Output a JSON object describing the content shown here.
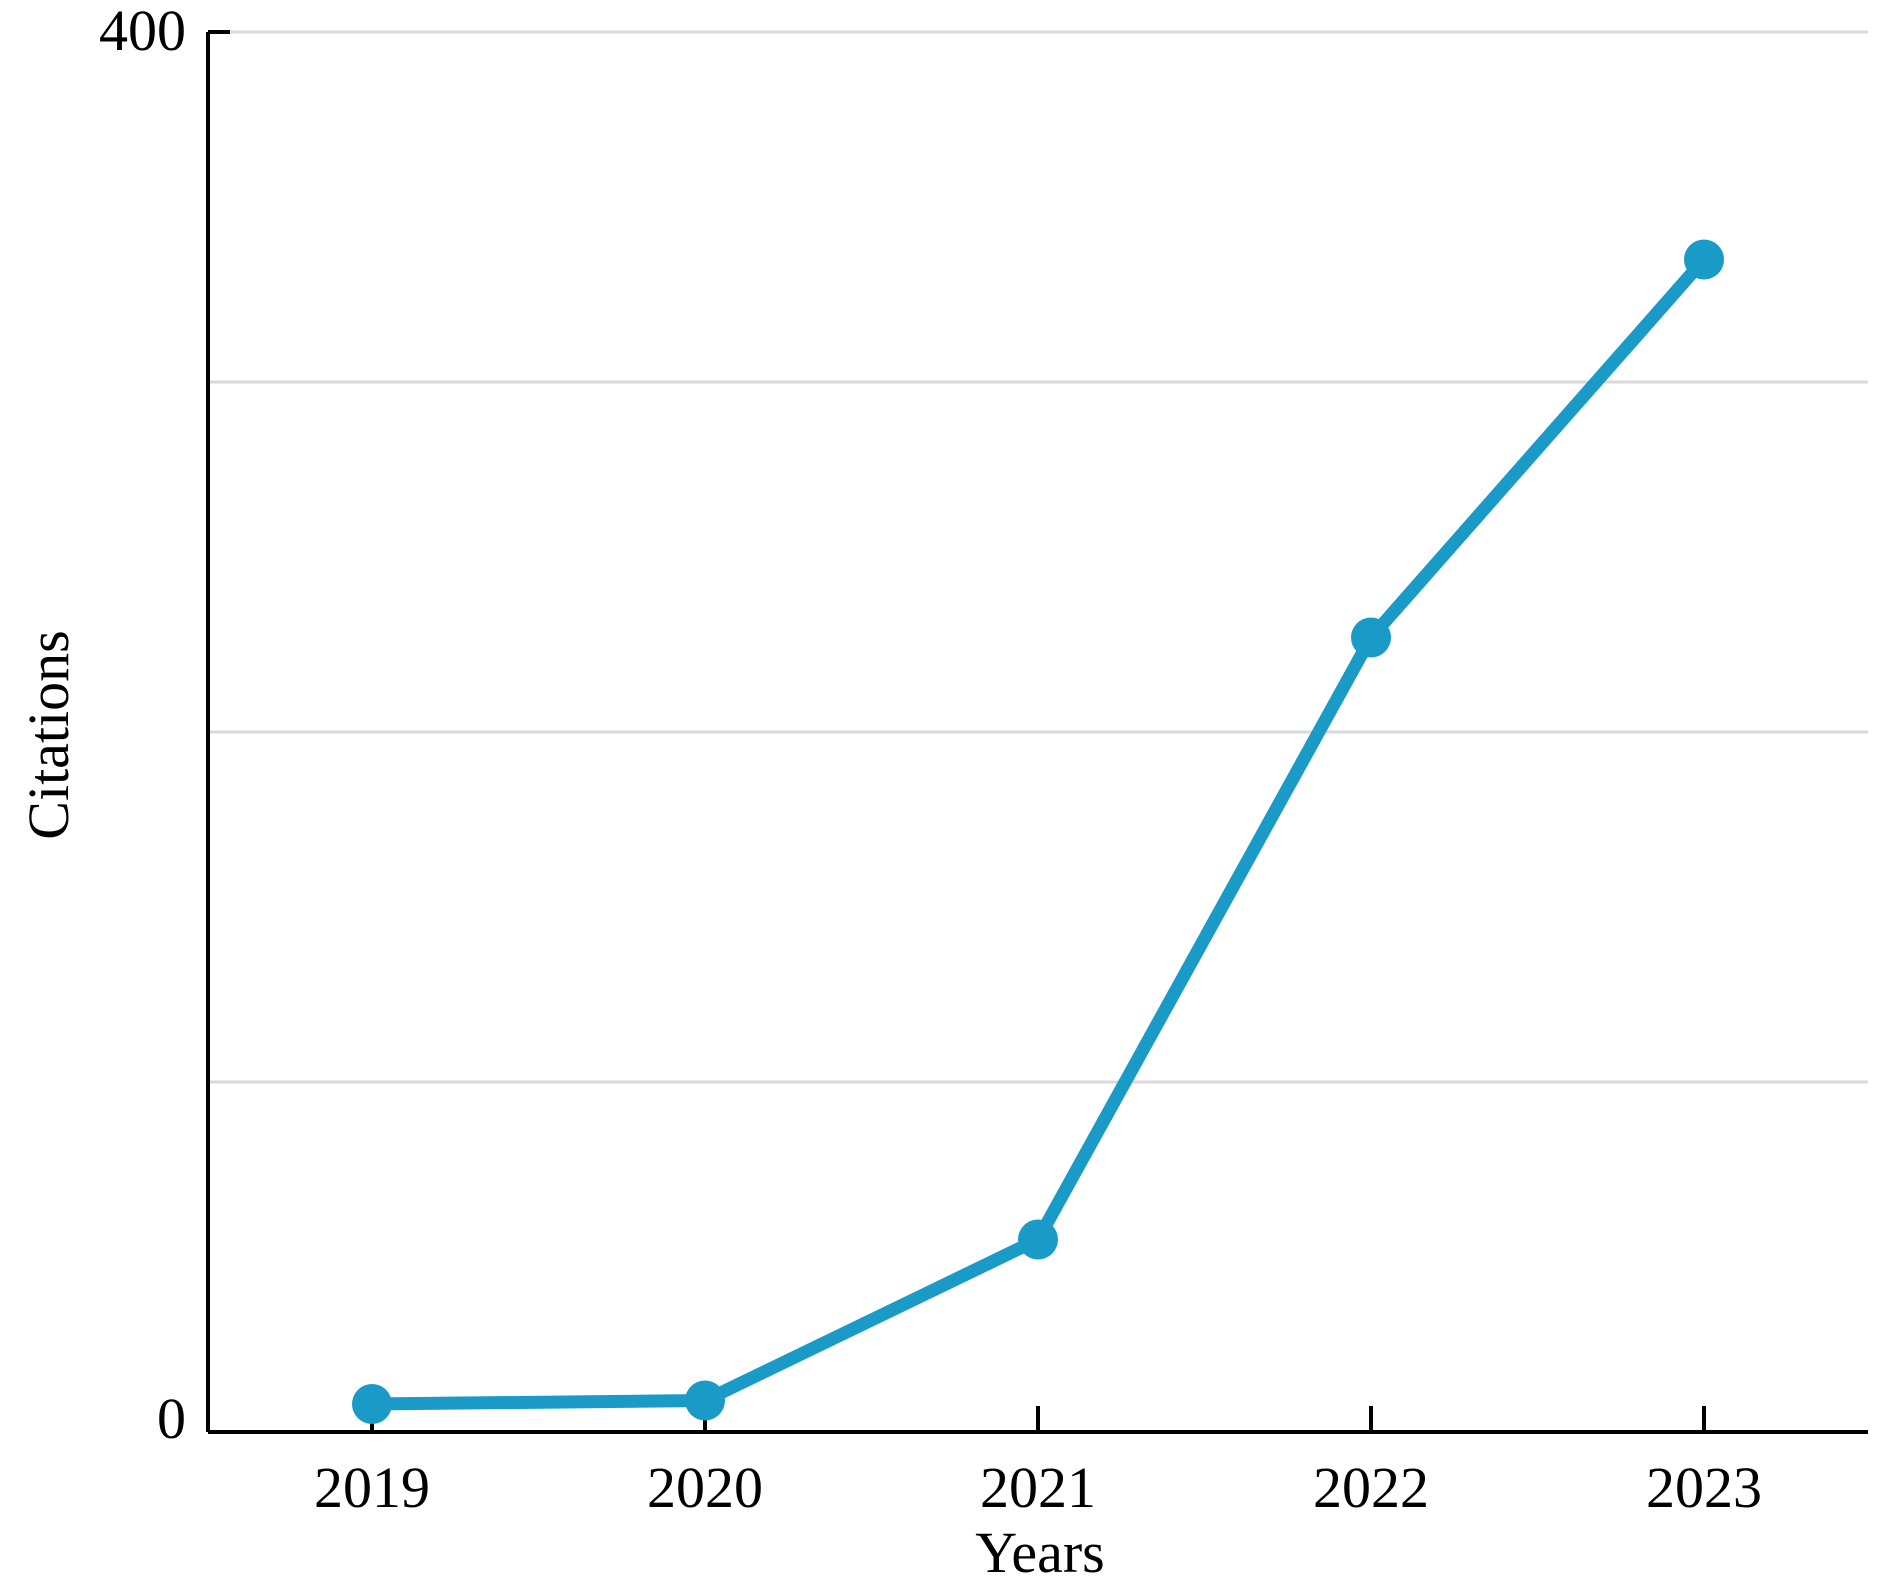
{
  "chart_data": {
    "type": "line",
    "title": "",
    "xlabel": "Years",
    "ylabel": "Citations",
    "x": [
      2019,
      2020,
      2021,
      2022,
      2023
    ],
    "series": [
      {
        "values": [
          8,
          9,
          55,
          227,
          335
        ]
      }
    ],
    "ylim": [
      0,
      400
    ],
    "y_tick_labels": [
      "0",
      "400"
    ],
    "y_gridlines": [
      100,
      200,
      300,
      400
    ],
    "grid": true,
    "legend": "none",
    "colors": {
      "line": "#1a9bc7",
      "grid": "#d9d9d9",
      "axis": "#000000"
    }
  }
}
